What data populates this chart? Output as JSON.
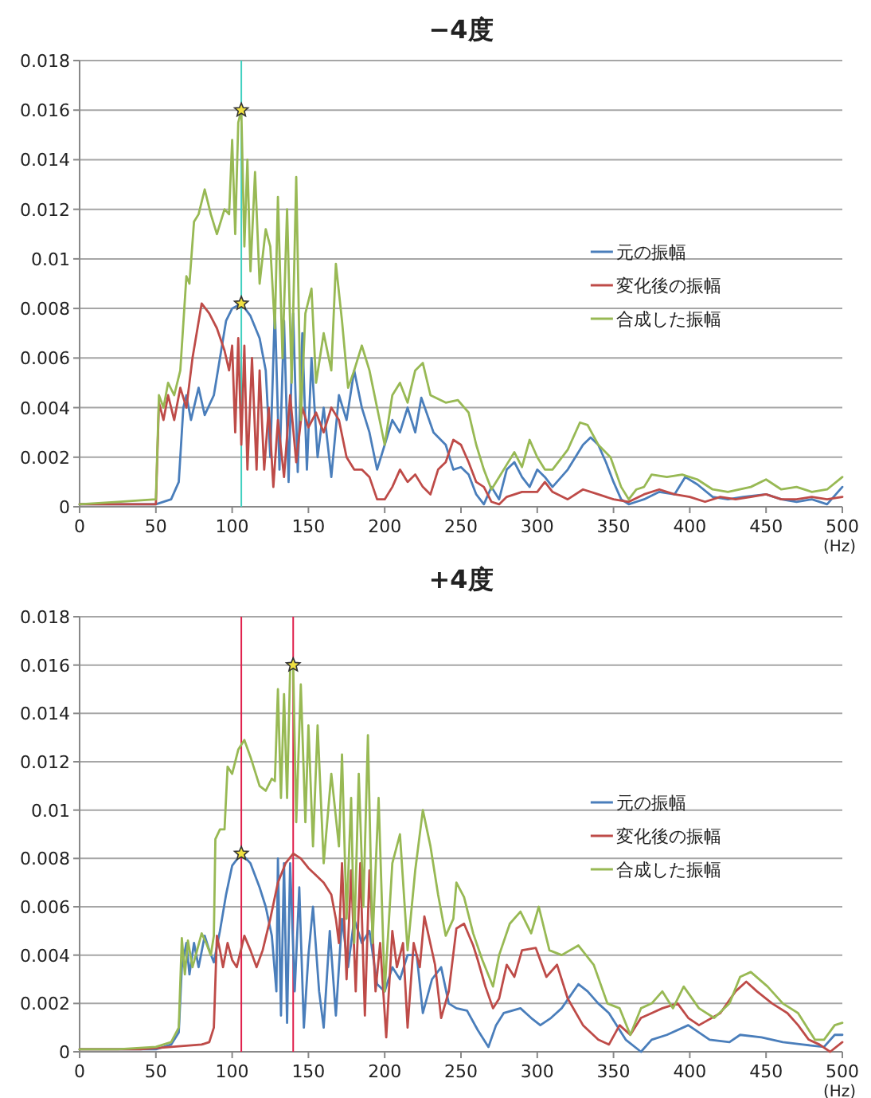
{
  "chart_data": [
    {
      "type": "line",
      "title": "−4度",
      "xlabel": "(Hz)",
      "xlim": [
        0,
        500
      ],
      "xticks": [
        0,
        50,
        100,
        150,
        200,
        250,
        300,
        350,
        400,
        450,
        500
      ],
      "ylim": [
        0,
        0.018
      ],
      "yticks": [
        0,
        0.002,
        0.004,
        0.006,
        0.008,
        0.01,
        0.012,
        0.014,
        0.016,
        0.018
      ],
      "grid": "y",
      "legend": "right",
      "marker": "none",
      "line_style": "solid",
      "ref_lines": [
        {
          "axis": "x",
          "value": 106,
          "label": null,
          "color": "#40d0c0"
        }
      ],
      "series": [
        {
          "name": "元の振幅",
          "color": "#4a7ebb",
          "x": [
            0,
            25,
            50,
            60,
            65,
            68,
            70,
            73,
            78,
            82,
            88,
            92,
            96,
            100,
            106,
            112,
            118,
            122,
            125,
            128,
            131,
            134,
            137,
            140,
            143,
            146,
            149,
            152,
            156,
            160,
            165,
            170,
            175,
            180,
            185,
            190,
            195,
            200,
            205,
            210,
            215,
            220,
            224,
            232,
            240,
            245,
            250,
            255,
            260,
            265,
            270,
            275,
            280,
            285,
            290,
            295,
            300,
            305,
            310,
            320,
            330,
            335,
            340,
            345,
            350,
            355,
            360,
            365,
            370,
            380,
            390,
            397,
            405,
            415,
            425,
            435,
            450,
            460,
            470,
            480,
            490,
            500
          ],
          "values": [
            0.0001,
            0.0001,
            0.0001,
            0.0003,
            0.001,
            0.004,
            0.0045,
            0.0035,
            0.0048,
            0.0037,
            0.0045,
            0.006,
            0.0075,
            0.008,
            0.0082,
            0.0077,
            0.0068,
            0.0055,
            0.002,
            0.008,
            0.0015,
            0.0075,
            0.001,
            0.0078,
            0.0014,
            0.007,
            0.0015,
            0.006,
            0.002,
            0.004,
            0.0012,
            0.0045,
            0.0035,
            0.0055,
            0.004,
            0.003,
            0.0015,
            0.0025,
            0.0035,
            0.003,
            0.004,
            0.003,
            0.0044,
            0.003,
            0.0025,
            0.0015,
            0.0016,
            0.0013,
            0.0005,
            0.0001,
            0.0008,
            0.0003,
            0.0015,
            0.0018,
            0.0012,
            0.0008,
            0.0015,
            0.0012,
            0.0008,
            0.0015,
            0.0025,
            0.0028,
            0.0025,
            0.0018,
            0.001,
            0.0003,
            0.0001,
            0.0002,
            0.0003,
            0.0006,
            0.0005,
            0.0012,
            0.0009,
            0.0004,
            0.0003,
            0.0004,
            0.0005,
            0.0003,
            0.0002,
            0.0003,
            0.0001,
            0.0008
          ]
        },
        {
          "name": "変化後の振幅",
          "color": "#be4b48",
          "x": [
            0,
            25,
            50,
            52,
            55,
            58,
            62,
            66,
            70,
            74,
            80,
            85,
            90,
            95,
            98,
            100,
            102,
            104,
            106,
            108,
            110,
            113,
            116,
            118,
            121,
            124,
            127,
            130,
            134,
            138,
            142,
            146,
            150,
            155,
            160,
            165,
            170,
            175,
            180,
            185,
            190,
            195,
            200,
            205,
            210,
            215,
            220,
            225,
            230,
            235,
            240,
            245,
            250,
            255,
            260,
            265,
            270,
            275,
            280,
            290,
            300,
            305,
            310,
            320,
            330,
            340,
            350,
            360,
            370,
            380,
            390,
            400,
            410,
            420,
            430,
            440,
            450,
            460,
            470,
            480,
            490,
            500
          ],
          "values": [
            0.0001,
            0.0001,
            0.0001,
            0.0042,
            0.0035,
            0.0045,
            0.0035,
            0.0048,
            0.004,
            0.006,
            0.0082,
            0.0078,
            0.0072,
            0.0063,
            0.0055,
            0.0065,
            0.003,
            0.0068,
            0.0025,
            0.0065,
            0.0015,
            0.006,
            0.0015,
            0.0055,
            0.0015,
            0.004,
            0.0008,
            0.0035,
            0.0012,
            0.0045,
            0.0018,
            0.004,
            0.0032,
            0.0038,
            0.003,
            0.004,
            0.0035,
            0.002,
            0.0015,
            0.0015,
            0.0012,
            0.0003,
            0.0003,
            0.0008,
            0.0015,
            0.001,
            0.0013,
            0.0008,
            0.0005,
            0.0015,
            0.0018,
            0.0027,
            0.0025,
            0.0018,
            0.001,
            0.0008,
            0.0002,
            0.0001,
            0.0004,
            0.0006,
            0.0006,
            0.001,
            0.0006,
            0.0003,
            0.0007,
            0.0005,
            0.0003,
            0.0002,
            0.0005,
            0.0007,
            0.0005,
            0.0004,
            0.0002,
            0.0004,
            0.0003,
            0.0004,
            0.0005,
            0.0003,
            0.0003,
            0.0004,
            0.0003,
            0.0004
          ]
        },
        {
          "name": "合成した振幅",
          "color": "#98b954",
          "x": [
            0,
            25,
            50,
            52,
            55,
            58,
            62,
            66,
            70,
            72,
            75,
            78,
            82,
            86,
            90,
            95,
            98,
            100,
            102,
            104,
            106,
            108,
            110,
            112,
            115,
            118,
            122,
            125,
            128,
            130,
            133,
            136,
            139,
            142,
            145,
            148,
            152,
            155,
            160,
            165,
            168,
            172,
            176,
            180,
            185,
            190,
            195,
            200,
            205,
            210,
            215,
            220,
            225,
            230,
            240,
            248,
            255,
            260,
            265,
            270,
            275,
            280,
            285,
            290,
            295,
            300,
            305,
            310,
            320,
            328,
            333,
            340,
            348,
            355,
            360,
            365,
            370,
            375,
            385,
            395,
            405,
            415,
            425,
            440,
            450,
            460,
            470,
            480,
            490,
            500
          ],
          "values": [
            0.0001,
            0.0002,
            0.0003,
            0.0045,
            0.004,
            0.005,
            0.0045,
            0.0055,
            0.0093,
            0.009,
            0.0115,
            0.0118,
            0.0128,
            0.0118,
            0.011,
            0.012,
            0.0118,
            0.0148,
            0.011,
            0.0155,
            0.016,
            0.0105,
            0.014,
            0.0095,
            0.0135,
            0.009,
            0.0112,
            0.0105,
            0.0072,
            0.0125,
            0.006,
            0.012,
            0.005,
            0.0133,
            0.0035,
            0.0078,
            0.0088,
            0.005,
            0.007,
            0.0055,
            0.0098,
            0.0075,
            0.0048,
            0.0055,
            0.0065,
            0.0055,
            0.004,
            0.0025,
            0.0045,
            0.005,
            0.0042,
            0.0055,
            0.0058,
            0.0045,
            0.0042,
            0.0043,
            0.0038,
            0.0025,
            0.0015,
            0.0007,
            0.0012,
            0.0017,
            0.0022,
            0.0016,
            0.0027,
            0.002,
            0.0015,
            0.0015,
            0.0023,
            0.0034,
            0.0033,
            0.0025,
            0.002,
            0.0008,
            0.0003,
            0.0007,
            0.0008,
            0.0013,
            0.0012,
            0.0013,
            0.0011,
            0.0007,
            0.0006,
            0.0008,
            0.0011,
            0.0007,
            0.0008,
            0.0006,
            0.0007,
            0.0012
          ]
        },
        {
          "type": "scatter",
          "marker": "star",
          "color": "#f0e040",
          "x": [
            106,
            106
          ],
          "values": [
            0.0082,
            0.016
          ]
        }
      ]
    },
    {
      "type": "line",
      "title": "+4度",
      "xlabel": "(Hz)",
      "xlim": [
        0,
        500
      ],
      "xticks": [
        0,
        50,
        100,
        150,
        200,
        250,
        300,
        350,
        400,
        450,
        500
      ],
      "ylim": [
        0,
        0.018
      ],
      "yticks": [
        0,
        0.002,
        0.004,
        0.006,
        0.008,
        0.01,
        0.012,
        0.014,
        0.016,
        0.018
      ],
      "grid": "y",
      "legend": "right",
      "marker": "none",
      "line_style": "solid",
      "ref_lines": [
        {
          "axis": "x",
          "value": 106,
          "label": null,
          "color": "#e0204c"
        },
        {
          "axis": "x",
          "value": 140,
          "label": null,
          "color": "#e0204c"
        }
      ],
      "series": [
        {
          "name": "元の振幅",
          "color": "#4a7ebb",
          "x": [
            0,
            25,
            50,
            60,
            65,
            67,
            70,
            72,
            75,
            78,
            82,
            85,
            88,
            92,
            96,
            100,
            106,
            112,
            118,
            122,
            126,
            129,
            130,
            132,
            134,
            136,
            138,
            141,
            144,
            147,
            150,
            153,
            157,
            160,
            164,
            168,
            172,
            176,
            180,
            185,
            190,
            195,
            200,
            205,
            210,
            215,
            221,
            225,
            231,
            237,
            242,
            247,
            254,
            261,
            268,
            273,
            278,
            289,
            296,
            302,
            309,
            316,
            327,
            333,
            340,
            347,
            358,
            368,
            375,
            385,
            399,
            413,
            426,
            433,
            447,
            461,
            474,
            488,
            495,
            500
          ],
          "values": [
            0.0001,
            0.0001,
            0.0001,
            0.0003,
            0.0008,
            0.0035,
            0.0045,
            0.0032,
            0.0045,
            0.0035,
            0.0048,
            0.0042,
            0.0037,
            0.005,
            0.0065,
            0.0077,
            0.0082,
            0.0078,
            0.0068,
            0.006,
            0.0048,
            0.0025,
            0.008,
            0.0015,
            0.0078,
            0.0012,
            0.0078,
            0.0025,
            0.0068,
            0.001,
            0.004,
            0.006,
            0.0025,
            0.001,
            0.005,
            0.0015,
            0.0055,
            0.0035,
            0.0055,
            0.0045,
            0.005,
            0.0028,
            0.0025,
            0.0035,
            0.003,
            0.004,
            0.004,
            0.0016,
            0.003,
            0.0035,
            0.002,
            0.0018,
            0.0017,
            0.0009,
            0.0002,
            0.0011,
            0.0016,
            0.0018,
            0.0014,
            0.0011,
            0.0014,
            0.0018,
            0.0028,
            0.0025,
            0.002,
            0.0016,
            0.0005,
            0,
            0.0005,
            0.0007,
            0.0011,
            0.0005,
            0.0004,
            0.0007,
            0.0006,
            0.0004,
            0.0003,
            0.0002,
            0.0007,
            0.0007
          ]
        },
        {
          "name": "変化後の振幅",
          "color": "#be4b48",
          "x": [
            0,
            40,
            80,
            85,
            88,
            90,
            92,
            94,
            97,
            100,
            103,
            108,
            112,
            116,
            120,
            125,
            130,
            135,
            140,
            145,
            150,
            155,
            160,
            165,
            168,
            170,
            172,
            175,
            178,
            181,
            184,
            187,
            190,
            194,
            197,
            201,
            205,
            208,
            212,
            215,
            219,
            223,
            226,
            233,
            237,
            242,
            247,
            252,
            258,
            261,
            266,
            271,
            275,
            280,
            285,
            290,
            299,
            306,
            313,
            320,
            330,
            340,
            347,
            354,
            361,
            368,
            375,
            382,
            392,
            399,
            406,
            420,
            430,
            437,
            444,
            454,
            464,
            471,
            478,
            485,
            492,
            500
          ],
          "values": [
            0.0001,
            0.0001,
            0.0003,
            0.0004,
            0.001,
            0.0048,
            0.0042,
            0.0035,
            0.0045,
            0.0038,
            0.0035,
            0.0048,
            0.0042,
            0.0035,
            0.0042,
            0.0055,
            0.007,
            0.0078,
            0.0082,
            0.008,
            0.0076,
            0.0073,
            0.007,
            0.0065,
            0.0055,
            0.0045,
            0.0078,
            0.003,
            0.0075,
            0.0025,
            0.0078,
            0.0015,
            0.0075,
            0.0025,
            0.0045,
            0.0006,
            0.005,
            0.0035,
            0.0045,
            0.001,
            0.0045,
            0.0035,
            0.0056,
            0.0036,
            0.0014,
            0.0025,
            0.0051,
            0.0053,
            0.0044,
            0.0038,
            0.0027,
            0.0018,
            0.0022,
            0.0036,
            0.0031,
            0.0042,
            0.0043,
            0.0031,
            0.0036,
            0.0022,
            0.0011,
            0.0005,
            0.0003,
            0.0011,
            0.0007,
            0.0014,
            0.0016,
            0.0018,
            0.002,
            0.0014,
            0.0011,
            0.0016,
            0.0025,
            0.0029,
            0.0025,
            0.002,
            0.0016,
            0.0011,
            0.0005,
            0.0003,
            0,
            0.0004
          ]
        },
        {
          "name": "合成した振幅",
          "color": "#98b954",
          "x": [
            0,
            25,
            50,
            60,
            65,
            67,
            69,
            71,
            74,
            77,
            80,
            83,
            86,
            88,
            89,
            92,
            95,
            97,
            100,
            104,
            108,
            112,
            118,
            122,
            126,
            128,
            130,
            132,
            134,
            136,
            138,
            140,
            142,
            145,
            148,
            150,
            153,
            156,
            160,
            165,
            170,
            172,
            175,
            178,
            180,
            183,
            186,
            189,
            192,
            196,
            200,
            205,
            210,
            215,
            220,
            225,
            230,
            235,
            240,
            245,
            247,
            252,
            258,
            264,
            271,
            275,
            282,
            289,
            296,
            301,
            308,
            316,
            327,
            337,
            346,
            354,
            361,
            368,
            375,
            382,
            389,
            396,
            406,
            416,
            426,
            433,
            440,
            451,
            461,
            471,
            482,
            488,
            495,
            500
          ],
          "values": [
            0.0001,
            0.0001,
            0.0002,
            0.0004,
            0.001,
            0.0047,
            0.0032,
            0.0046,
            0.0035,
            0.0042,
            0.0049,
            0.0045,
            0.004,
            0.0048,
            0.0088,
            0.0092,
            0.0092,
            0.0118,
            0.0115,
            0.0125,
            0.0129,
            0.0122,
            0.011,
            0.0108,
            0.0113,
            0.0112,
            0.015,
            0.0105,
            0.0148,
            0.0105,
            0.0158,
            0.016,
            0.0095,
            0.0152,
            0.0095,
            0.0135,
            0.0085,
            0.0135,
            0.0078,
            0.0115,
            0.0085,
            0.0123,
            0.0055,
            0.0105,
            0.0045,
            0.0115,
            0.006,
            0.0131,
            0.0045,
            0.0105,
            0.0025,
            0.0078,
            0.009,
            0.0042,
            0.0075,
            0.01,
            0.0085,
            0.0065,
            0.0048,
            0.0055,
            0.007,
            0.0064,
            0.0049,
            0.0038,
            0.0027,
            0.004,
            0.0053,
            0.0058,
            0.0049,
            0.006,
            0.0042,
            0.004,
            0.0044,
            0.0036,
            0.002,
            0.0018,
            0.0007,
            0.0018,
            0.002,
            0.0025,
            0.0018,
            0.0027,
            0.0018,
            0.0014,
            0.002,
            0.0031,
            0.0033,
            0.0027,
            0.002,
            0.0016,
            0.0005,
            0.0005,
            0.0011,
            0.0012
          ]
        },
        {
          "type": "scatter",
          "marker": "star",
          "color": "#f0e040",
          "x": [
            106,
            140
          ],
          "values": [
            0.0082,
            0.016
          ]
        }
      ]
    }
  ]
}
